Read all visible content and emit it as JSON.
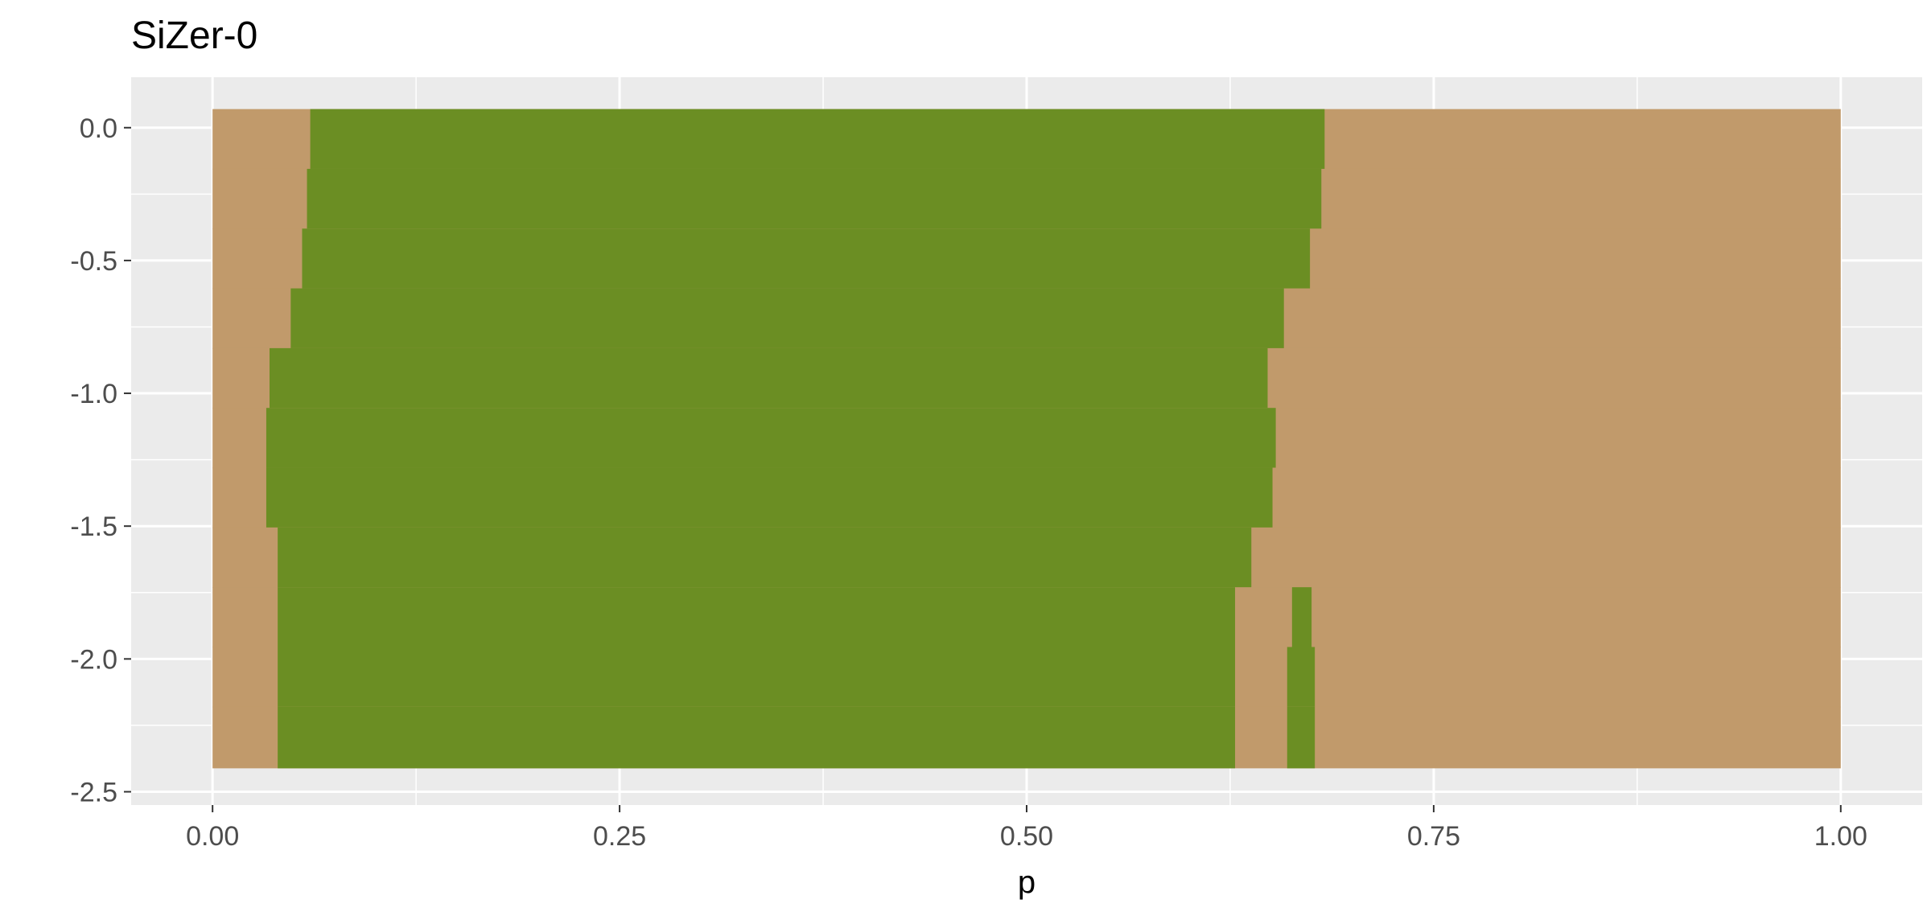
{
  "chart_data": {
    "type": "heatmap",
    "title": "SiZer-0",
    "xlabel": "p",
    "ylabel": "",
    "xlim": [
      -0.05,
      1.05
    ],
    "ylim": [
      -2.55,
      0.19
    ],
    "x_ticks": [
      {
        "value": 0.0,
        "label": "0.00"
      },
      {
        "value": 0.25,
        "label": "0.25"
      },
      {
        "value": 0.5,
        "label": "0.50"
      },
      {
        "value": 0.75,
        "label": "0.75"
      },
      {
        "value": 1.0,
        "label": "1.00"
      }
    ],
    "y_ticks": [
      {
        "value": 0.0,
        "label": "0.0"
      },
      {
        "value": -0.5,
        "label": "-0.5"
      },
      {
        "value": -1.0,
        "label": "-1.0"
      },
      {
        "value": -1.5,
        "label": "-1.5"
      },
      {
        "value": -2.0,
        "label": "-2.0"
      },
      {
        "value": -2.5,
        "label": "-2.5"
      }
    ],
    "grid": true,
    "colors": {
      "panel": "#ebebeb",
      "grid": "#ffffff",
      "tan": "#c19a6b",
      "green": "#6b8e23",
      "tick": "#333333"
    },
    "x_range": [
      0.0,
      1.0
    ],
    "rows": [
      {
        "y_top": 0.07,
        "y_bottom": -0.155,
        "green": [
          [
            0.06,
            0.683
          ]
        ]
      },
      {
        "y_top": -0.155,
        "y_bottom": -0.38,
        "green": [
          [
            0.058,
            0.681
          ]
        ]
      },
      {
        "y_top": -0.38,
        "y_bottom": -0.605,
        "green": [
          [
            0.055,
            0.674
          ]
        ]
      },
      {
        "y_top": -0.605,
        "y_bottom": -0.83,
        "green": [
          [
            0.048,
            0.658
          ]
        ]
      },
      {
        "y_top": -0.83,
        "y_bottom": -1.055,
        "green": [
          [
            0.035,
            0.648
          ]
        ]
      },
      {
        "y_top": -1.055,
        "y_bottom": -1.28,
        "green": [
          [
            0.033,
            0.653
          ]
        ]
      },
      {
        "y_top": -1.28,
        "y_bottom": -1.505,
        "green": [
          [
            0.033,
            0.651
          ]
        ]
      },
      {
        "y_top": -1.505,
        "y_bottom": -1.73,
        "green": [
          [
            0.04,
            0.638
          ]
        ]
      },
      {
        "y_top": -1.73,
        "y_bottom": -1.955,
        "green": [
          [
            0.04,
            0.628
          ],
          [
            0.663,
            0.675
          ]
        ]
      },
      {
        "y_top": -1.955,
        "y_bottom": -2.18,
        "green": [
          [
            0.04,
            0.628
          ],
          [
            0.66,
            0.677
          ]
        ]
      },
      {
        "y_top": -2.18,
        "y_bottom": -2.41,
        "green": [
          [
            0.04,
            0.628
          ],
          [
            0.66,
            0.677
          ]
        ]
      }
    ]
  }
}
